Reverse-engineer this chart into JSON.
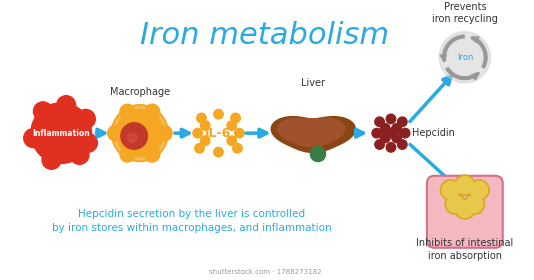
{
  "title": "Iron metabolism",
  "title_color": "#29ABE2",
  "title_fontsize": 22,
  "bg_color": "#ffffff",
  "arrow_color": "#29ABE2",
  "subtitle": "Hepcidin secretion by the liver is controlled\nby iron stores within macrophages, and inflammation",
  "subtitle_color": "#29ABE2",
  "subtitle_fontsize": 7.5,
  "labels": {
    "inflammation": "Inflammation",
    "macrophage": "Macrophage",
    "il6": "IL-6",
    "liver": "Liver",
    "hepcidin": "Hepcidin",
    "prevents": "Prevents\niron recycling",
    "iron": "Iron",
    "inhibits": "Inhibits of intestinal\niron absorption"
  },
  "label_color": "#333333",
  "label_fontsize": 7,
  "watermark": "shutterstock.com · 1788273182"
}
